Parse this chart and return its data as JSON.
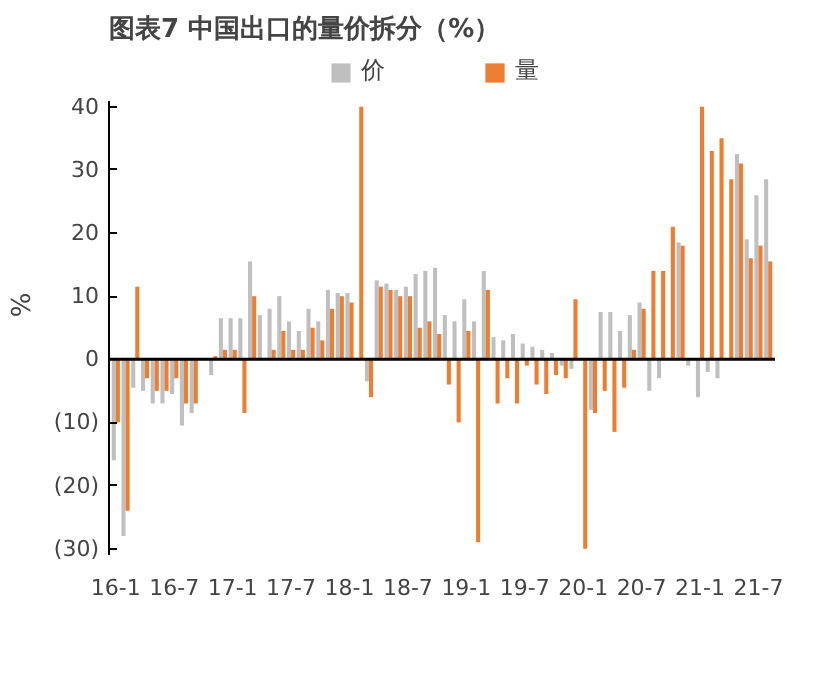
{
  "chart_data": {
    "type": "bar",
    "title": "图表7    中国出口的量价拆分（%）",
    "ylabel": "%",
    "categories": [
      "16-1",
      null,
      null,
      null,
      null,
      null,
      "16-7",
      null,
      null,
      null,
      null,
      null,
      "17-1",
      null,
      null,
      null,
      null,
      null,
      "17-7",
      null,
      null,
      null,
      null,
      null,
      "18-1",
      null,
      null,
      null,
      null,
      null,
      "18-7",
      null,
      null,
      null,
      null,
      null,
      "19-1",
      null,
      null,
      null,
      null,
      null,
      "19-7",
      null,
      null,
      null,
      null,
      null,
      "20-1",
      null,
      null,
      null,
      null,
      null,
      "20-7",
      null,
      null,
      null,
      null,
      null,
      "21-1",
      null,
      null,
      null,
      null,
      null,
      "21-7",
      null
    ],
    "series": [
      {
        "name": "价",
        "color": "#bfbfbf",
        "values": [
          -16,
          -28,
          -4.5,
          -5,
          -7,
          -7,
          -5.5,
          -10.5,
          -8.5,
          0,
          -2.5,
          6.5,
          6.5,
          6.5,
          15.5,
          7,
          8,
          10,
          6,
          4.5,
          8,
          6,
          11,
          10.5,
          10.5,
          null,
          -3.5,
          12.5,
          12,
          11,
          11.5,
          13.5,
          14,
          14.5,
          7,
          6,
          9.5,
          6,
          14,
          3.5,
          3,
          4,
          2.5,
          2,
          1.5,
          1,
          -1,
          -1.5,
          null,
          -8,
          7.5,
          7.5,
          4.5,
          7,
          9,
          -5,
          -3,
          null,
          18.5,
          -1,
          -6,
          -2,
          -3,
          null,
          32.5,
          19,
          26,
          28.5
        ]
      },
      {
        "name": "量",
        "color": "#ed7d31",
        "values": [
          -10,
          -24,
          11.5,
          -3,
          -5,
          -5,
          -3,
          -7,
          -7,
          0,
          0.5,
          1.5,
          1.5,
          -8.5,
          10,
          null,
          1.5,
          4.5,
          1.5,
          1.5,
          5,
          3,
          8,
          10,
          9,
          40,
          -6,
          11.5,
          11,
          10,
          10,
          5,
          6,
          4,
          -4,
          -10,
          4.5,
          -29,
          11,
          -7,
          -3,
          -7,
          -1,
          -4,
          -5.5,
          -2.5,
          -3,
          9.5,
          -30,
          -8.5,
          -5,
          -11.5,
          -4.5,
          1.5,
          8,
          14,
          14,
          21,
          18,
          null,
          40,
          33,
          35,
          28.5,
          31,
          16,
          18,
          15.5
        ]
      }
    ],
    "ylim": [
      -31,
      41
    ],
    "yticks": [
      {
        "value": -30,
        "label": "(30)"
      },
      {
        "value": -20,
        "label": "(20)"
      },
      {
        "value": -10,
        "label": "(10)"
      },
      0,
      10,
      20,
      30,
      40
    ],
    "legend": "top"
  }
}
